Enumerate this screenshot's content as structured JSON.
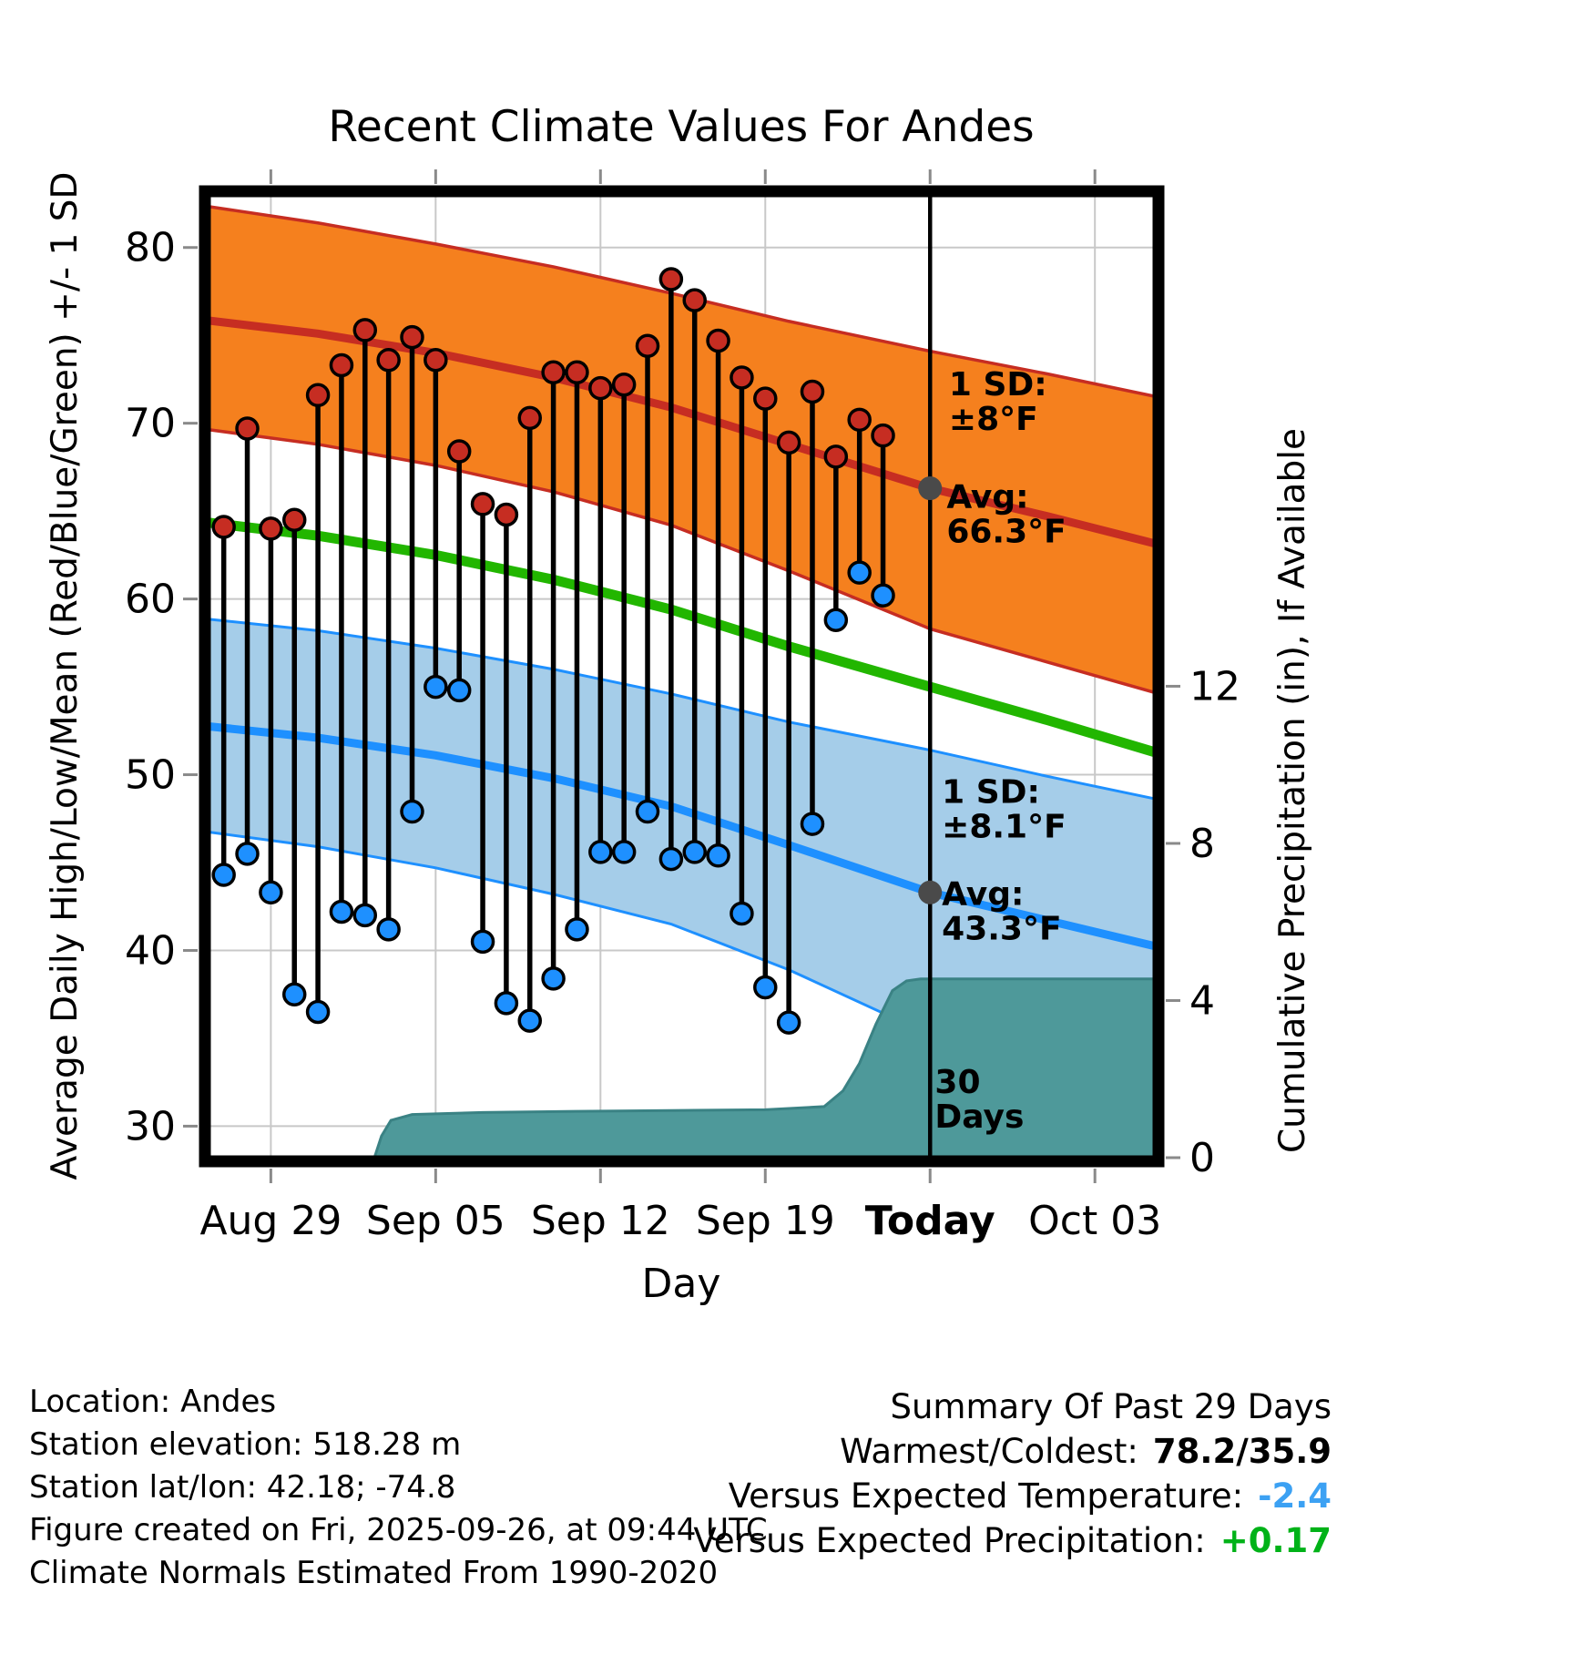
{
  "title": "Recent Climate Values For Andes",
  "chart_data": {
    "type": "line",
    "title": "Recent Climate Values For Andes",
    "xlabel": "Day",
    "ylabel_left": "Average Daily High/Low/Mean (Red/Blue/Green) +/- 1 SD",
    "ylabel_right": "Cumulative Precipitation (in), If Available",
    "x_domain": [
      0.2,
      40.7
    ],
    "y_left_domain": [
      28.0,
      83.2
    ],
    "y_right_domain": [
      0,
      24.6
    ],
    "y_left_ticks": [
      30,
      40,
      50,
      60,
      70,
      80
    ],
    "y_right_ticks": [
      0,
      4,
      8,
      12
    ],
    "x_ticks": [
      {
        "day": 3,
        "label": "Aug 29",
        "bold": false
      },
      {
        "day": 10,
        "label": "Sep 05",
        "bold": false
      },
      {
        "day": 17,
        "label": "Sep 12",
        "bold": false
      },
      {
        "day": 24,
        "label": "Sep 19",
        "bold": false
      },
      {
        "day": 31,
        "label": "Today",
        "bold": true
      },
      {
        "day": 38,
        "label": "Oct 03",
        "bold": false
      }
    ],
    "today_day": 31,
    "climatology": {
      "days": [
        0,
        5,
        10,
        15,
        20,
        25,
        31,
        36,
        41
      ],
      "high_upper": [
        82.4,
        81.4,
        80.2,
        78.9,
        77.4,
        75.8,
        74.1,
        72.8,
        71.4
      ],
      "high_mean": [
        75.9,
        75.1,
        74.0,
        72.6,
        70.9,
        68.8,
        66.3,
        64.7,
        63.0
      ],
      "high_lower": [
        69.7,
        68.8,
        67.6,
        66.1,
        64.2,
        61.6,
        58.3,
        56.4,
        54.5
      ],
      "mean": [
        64.4,
        63.6,
        62.5,
        61.1,
        59.4,
        57.3,
        55.0,
        53.1,
        51.1
      ],
      "low_upper": [
        58.9,
        58.2,
        57.2,
        56.0,
        54.6,
        53.0,
        51.4,
        49.9,
        48.5
      ],
      "low_mean": [
        52.8,
        52.1,
        51.1,
        49.8,
        48.2,
        46.0,
        43.3,
        41.7,
        40.1
      ],
      "low_lower": [
        46.8,
        45.9,
        44.7,
        43.2,
        41.5,
        38.9,
        35.2,
        33.6,
        31.9
      ],
      "high_sd_label": "±8°F",
      "high_avg_today": 66.3,
      "low_sd_label": "±8.1°F",
      "low_avg_today": 43.3
    },
    "daily": {
      "first_day": 1,
      "highs": [
        64.1,
        69.7,
        64.0,
        64.5,
        71.6,
        73.3,
        75.3,
        73.6,
        74.9,
        73.6,
        68.4,
        65.4,
        64.8,
        70.3,
        72.9,
        72.9,
        72.0,
        72.2,
        74.4,
        78.2,
        77.0,
        74.7,
        72.6,
        71.4,
        68.9,
        71.8,
        68.1,
        70.2,
        69.3
      ],
      "lows": [
        44.3,
        45.5,
        43.3,
        37.5,
        36.5,
        42.2,
        42.0,
        41.2,
        47.9,
        55.0,
        54.8,
        40.5,
        37.0,
        36.0,
        38.4,
        41.2,
        45.6,
        45.6,
        47.9,
        45.2,
        45.6,
        45.4,
        42.1,
        37.9,
        35.9,
        47.2,
        58.8,
        61.5,
        60.2
      ]
    },
    "precip_cumulative": {
      "points": [
        [
          0,
          0
        ],
        [
          7.4,
          0
        ],
        [
          7.7,
          0.55
        ],
        [
          8.1,
          0.95
        ],
        [
          9,
          1.1
        ],
        [
          12,
          1.15
        ],
        [
          16,
          1.18
        ],
        [
          20,
          1.2
        ],
        [
          24,
          1.22
        ],
        [
          26.5,
          1.3
        ],
        [
          27.3,
          1.7
        ],
        [
          28,
          2.4
        ],
        [
          28.7,
          3.4
        ],
        [
          29.4,
          4.25
        ],
        [
          30,
          4.5
        ],
        [
          30.6,
          4.55
        ],
        [
          41,
          4.55
        ]
      ]
    },
    "avg_markers": [
      {
        "day": 31,
        "value": 66.3
      },
      {
        "day": 31,
        "value": 43.3
      }
    ],
    "annotations": [
      {
        "day": 31.8,
        "value": 71.6,
        "lines": [
          "1 SD:",
          "±8°F"
        ],
        "color": "#7f7f7f"
      },
      {
        "day": 31.7,
        "value": 65.2,
        "lines": [
          "Avg:",
          "66.3°F"
        ],
        "color": "#7f7f7f"
      },
      {
        "day": 31.5,
        "value": 48.4,
        "lines": [
          "1 SD:",
          "±8.1°F"
        ],
        "color": "#7f7f7f"
      },
      {
        "day": 31.5,
        "value": 42.6,
        "lines": [
          "Avg:",
          "43.3°F"
        ],
        "color": "#7f7f7f"
      },
      {
        "day": 31.2,
        "value": 31.9,
        "lines": [
          "30",
          "Days"
        ],
        "color": "#000000"
      }
    ]
  },
  "footer": {
    "lines": [
      "Location: Andes",
      "Station elevation: 518.28 m",
      "Station lat/lon: 42.18; -74.8",
      "Figure created on Fri, 2025-09-26, at 09:44 UTC",
      "Climate Normals Estimated From 1990-2020"
    ]
  },
  "summary": {
    "title": "Summary Of Past 29 Days",
    "rows": [
      {
        "label": "Warmest/Coldest:",
        "value": "78.2/35.9",
        "color": "#000000"
      },
      {
        "label": "Versus Expected Temperature:",
        "value": "-2.4",
        "color": "#3ca1f3"
      },
      {
        "label": "Versus Expected Precipitation:",
        "value": "+0.17",
        "color": "#00b218"
      }
    ]
  },
  "colors": {
    "high_band": "#f5801e",
    "high_line": "#c62d22",
    "high_dot": "#c62d22",
    "low_band": "#a5cde9",
    "low_line": "#1e90ff",
    "low_dot": "#1e90ff",
    "mean_line": "#22b600",
    "precip_fill": "#4e999a",
    "precip_edge": "#3a8284",
    "grid": "#c8c8c8",
    "today_line": "#000000",
    "avg_marker": "#4a4a4a"
  }
}
